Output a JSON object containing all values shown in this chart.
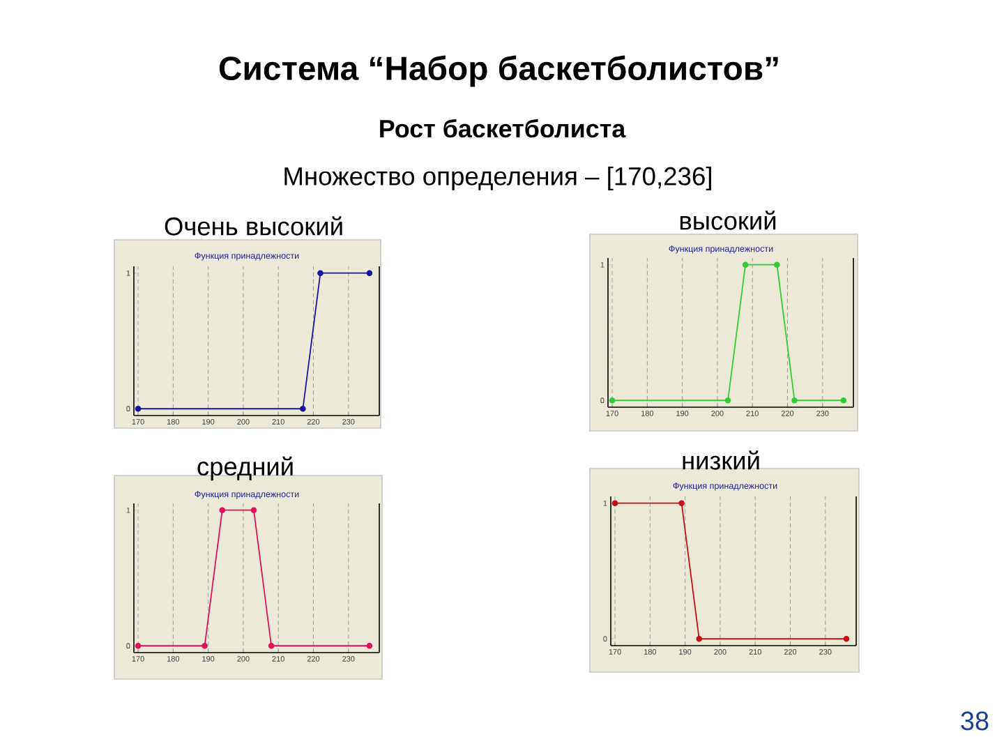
{
  "chart_data": [
    {
      "type": "other",
      "title": "Система “Набор баскетболистов”",
      "subtitle": "Рост баскетболиста",
      "annotations": [
        "Множество определения – [170,236]",
        "38"
      ]
    },
    {
      "type": "line",
      "title": "Очень высокий",
      "subtitle": "Функция принадлежности",
      "x": [
        170,
        217,
        222,
        236
      ],
      "values": [
        0,
        0,
        1,
        1
      ],
      "color": "#1414a0",
      "xlim": [
        168.8,
        238.8
      ],
      "ylim": [
        -0.05,
        1.05
      ],
      "xticks": [
        170,
        180,
        190,
        200,
        210,
        220,
        230
      ],
      "yticks": [
        0,
        1
      ],
      "grid": "x",
      "marker": "circle",
      "line_style": "solid"
    },
    {
      "type": "line",
      "title": "высокий",
      "subtitle": "Функция принадлежности",
      "x": [
        170,
        203,
        208,
        217,
        222,
        236
      ],
      "values": [
        0,
        0,
        1,
        1,
        0,
        0
      ],
      "color": "#33cc33",
      "xlim": [
        168.8,
        238.8
      ],
      "ylim": [
        -0.05,
        1.05
      ],
      "xticks": [
        170,
        180,
        190,
        200,
        210,
        220,
        230
      ],
      "yticks": [
        0,
        1
      ],
      "grid": "x",
      "marker": "circle",
      "line_style": "solid"
    },
    {
      "type": "line",
      "title": "средний",
      "subtitle": "Функция принадлежности",
      "x": [
        170,
        189,
        194,
        203,
        208,
        236
      ],
      "values": [
        0,
        0,
        1,
        1,
        0,
        0
      ],
      "color": "#e0105a",
      "xlim": [
        168.8,
        238.8
      ],
      "ylim": [
        -0.05,
        1.05
      ],
      "xticks": [
        170,
        180,
        190,
        200,
        210,
        220,
        230
      ],
      "yticks": [
        0,
        1
      ],
      "grid": "x",
      "marker": "circle",
      "line_style": "solid"
    },
    {
      "type": "line",
      "title": "низкий",
      "subtitle": "Функция принадлежности",
      "x": [
        170,
        189,
        194,
        236
      ],
      "values": [
        1,
        1,
        0,
        0
      ],
      "color": "#c81010",
      "xlim": [
        168.8,
        238.8
      ],
      "ylim": [
        -0.05,
        1.05
      ],
      "xticks": [
        170,
        180,
        190,
        200,
        210,
        220,
        230
      ],
      "yticks": [
        0,
        1
      ],
      "grid": "x",
      "marker": "circle",
      "line_style": "solid"
    }
  ]
}
